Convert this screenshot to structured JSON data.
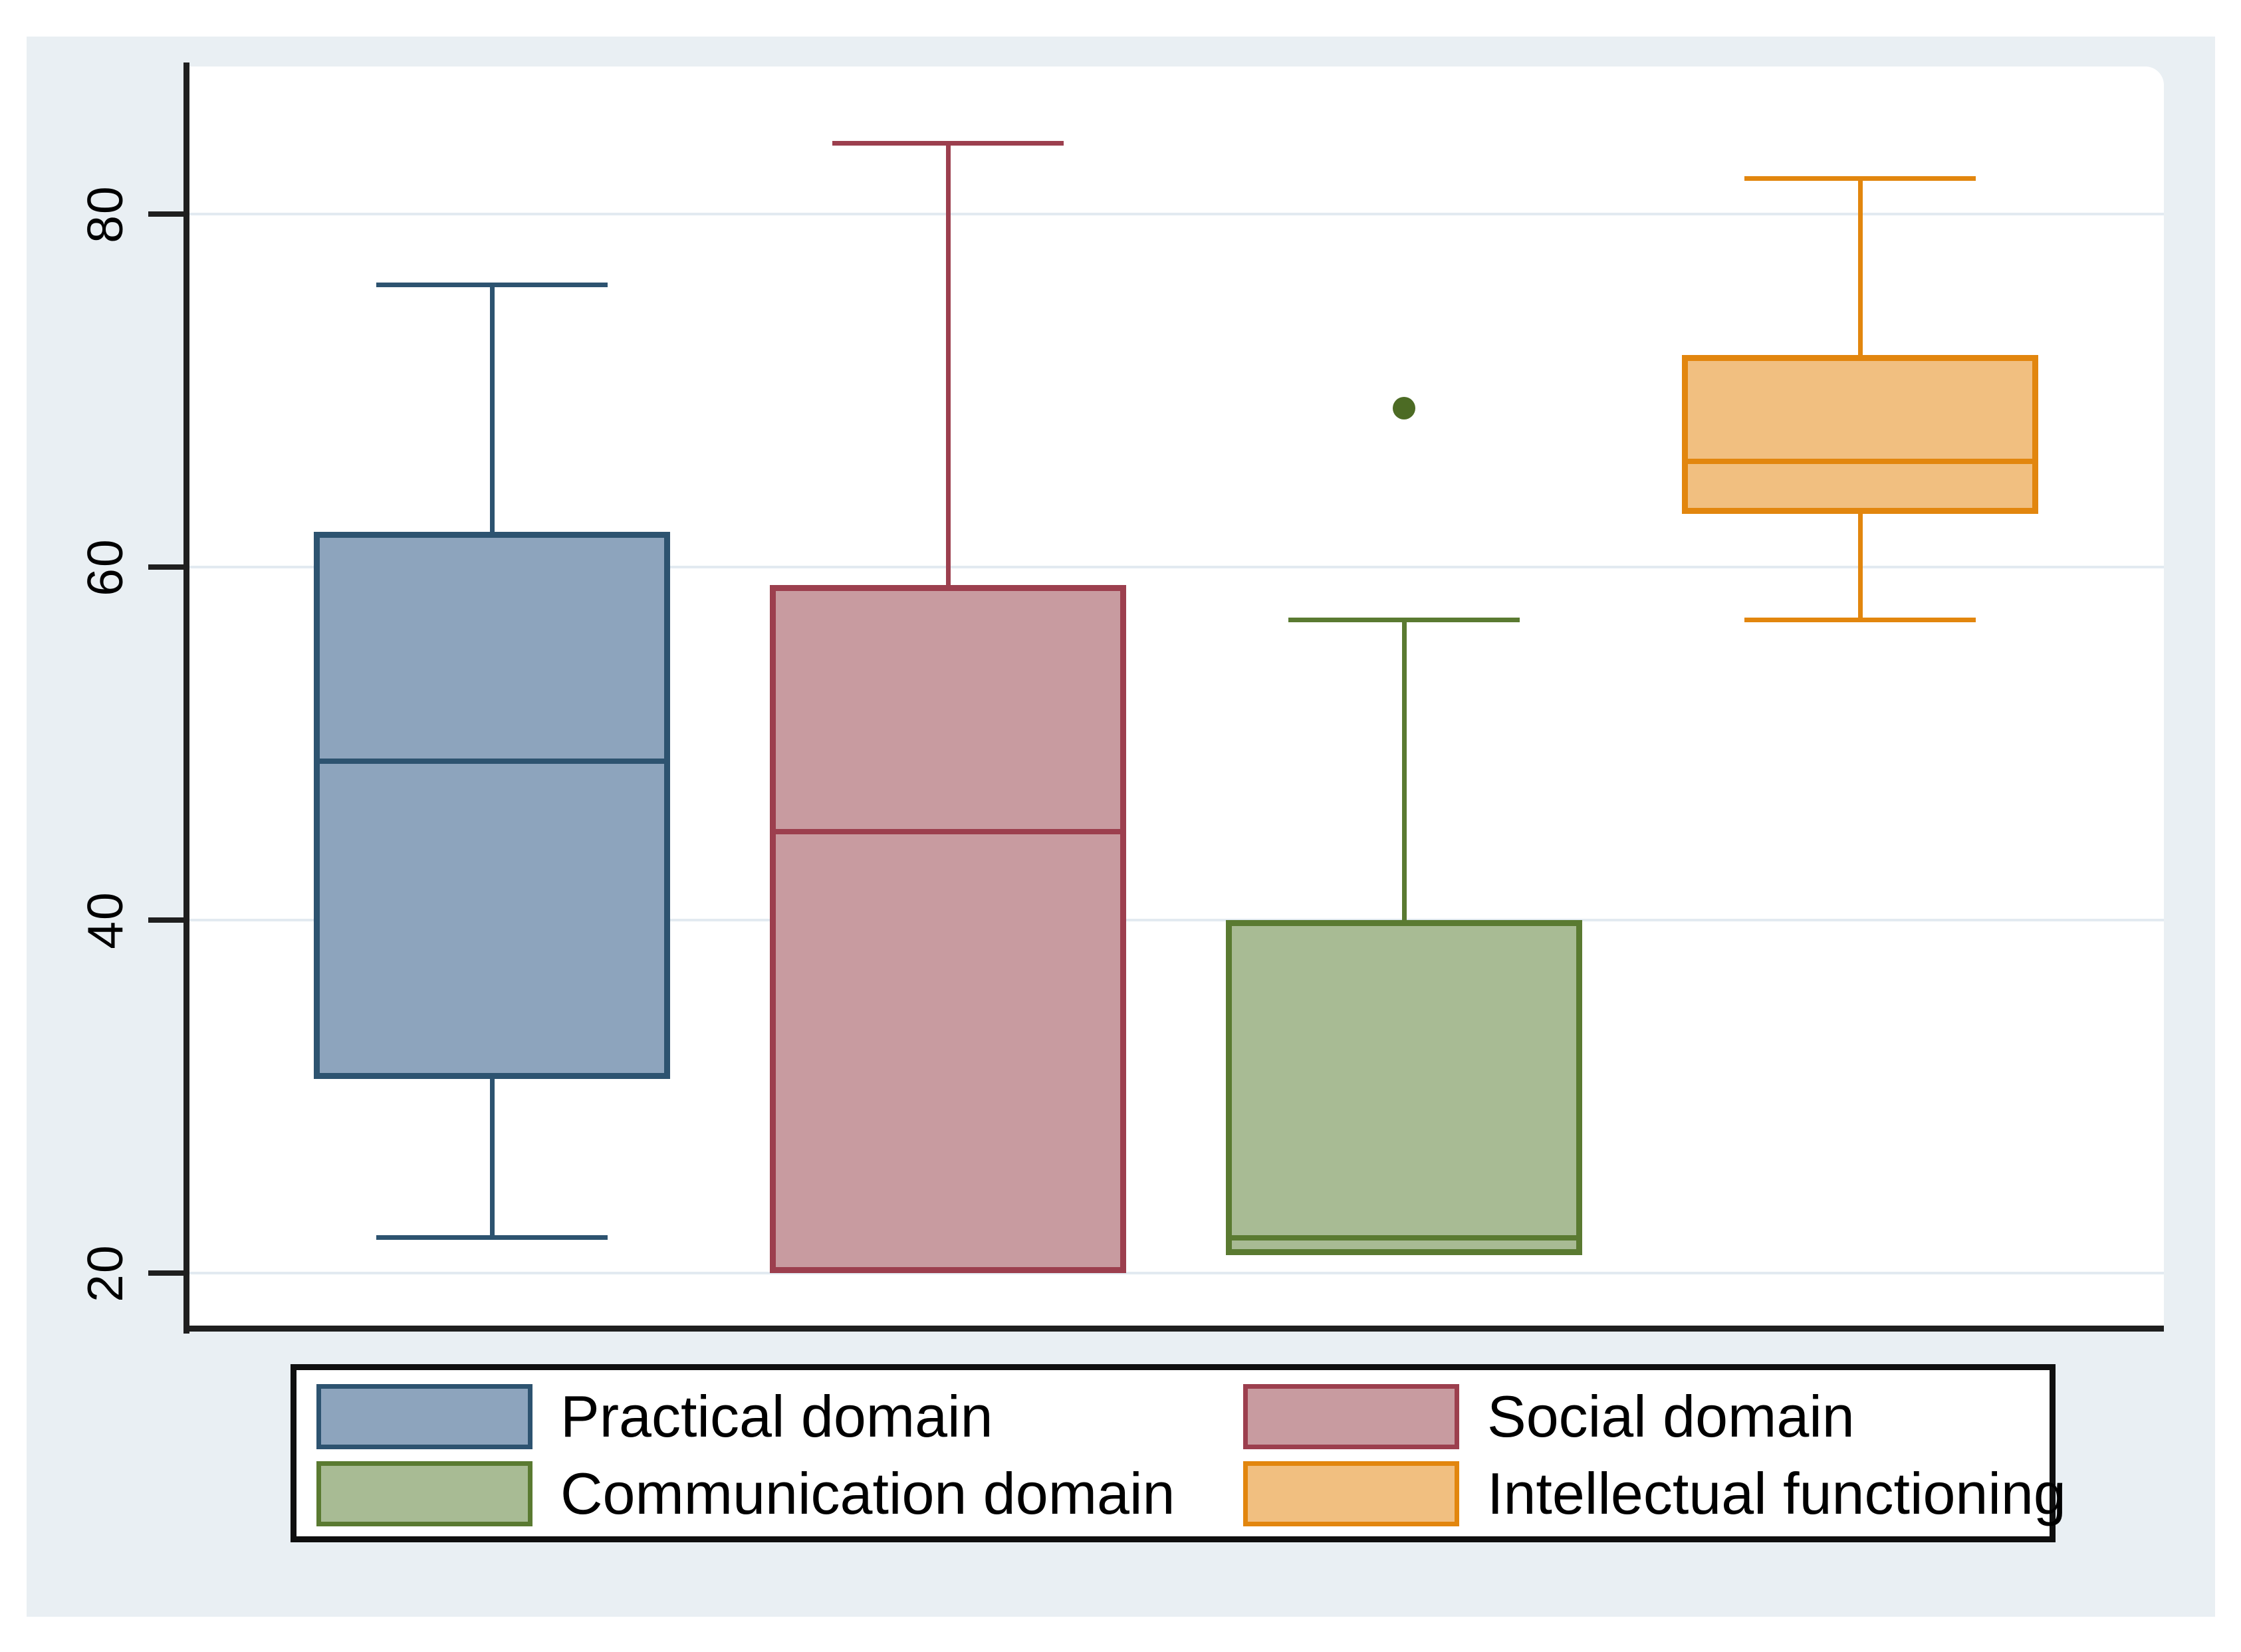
{
  "chart_data": {
    "type": "box",
    "title": "",
    "xlabel": "",
    "ylabel": "",
    "grid": "horizontal",
    "legend_position": "bottom",
    "y_axis": {
      "ticks": [
        20,
        40,
        60,
        80
      ],
      "tick_labels": [
        "20",
        "40",
        "60",
        "80"
      ],
      "range": [
        17,
        88.5
      ]
    },
    "series": [
      {
        "name": "Practical domain",
        "min": 22,
        "q1": 31,
        "median": 49,
        "q3": 62,
        "max": 76,
        "outliers": [],
        "fill": "#8da4bd",
        "stroke": "#2d5370"
      },
      {
        "name": "Social domain",
        "min": 20,
        "q1": 20,
        "median": 45,
        "q3": 59,
        "max": 84,
        "outliers": [],
        "fill": "#c89ba0",
        "stroke": "#9c3f4e"
      },
      {
        "name": "Communication domain",
        "min": 21,
        "q1": 21,
        "median": 22,
        "q3": 40,
        "max": 57,
        "outliers": [
          69
        ],
        "fill": "#a8bb94",
        "stroke": "#5a7a31",
        "outlier_color": "#4c6b24"
      },
      {
        "name": "Intellectual functioning",
        "min": 57,
        "q1": 63,
        "median": 66,
        "q3": 72,
        "max": 82,
        "outliers": [],
        "fill": "#f1bf80",
        "stroke": "#e2860e"
      }
    ]
  },
  "colors": {
    "page_bg": "#ffffff",
    "outer_bg": "#e9eff3",
    "plot_bg": "#ffffff",
    "grid": "#e2eaf1",
    "axis": "#1f1f1f",
    "tick_text": "#000000",
    "legend_border": "#0f0f0f",
    "legend_bg": "#ffffff",
    "legend_text": "#000000"
  }
}
